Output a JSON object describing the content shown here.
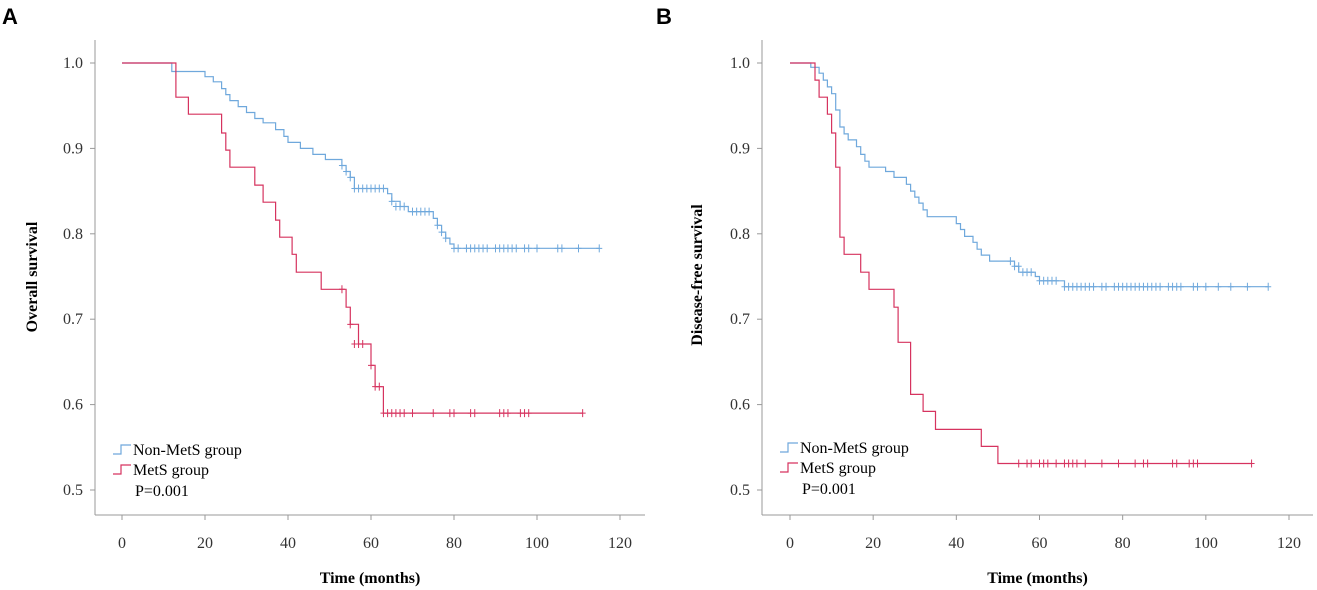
{
  "figure_labels": [
    "A",
    "B"
  ],
  "chart_data": [
    {
      "panel": "A",
      "type": "line",
      "subtype": "kaplan-meier-step",
      "title": "",
      "xlabel": "Time (months)",
      "ylabel": "Overall survival",
      "xlim": [
        0,
        120
      ],
      "ylim": [
        0.5,
        1.0
      ],
      "xticks": [
        0,
        20,
        40,
        60,
        80,
        100,
        120
      ],
      "yticks": [
        0.5,
        0.6,
        0.7,
        0.8,
        0.9,
        1.0
      ],
      "xtick_labels": [
        "0",
        "20",
        "40",
        "60",
        "80",
        "100",
        "120"
      ],
      "ytick_labels": [
        "0.5",
        "0.6",
        "0.7",
        "0.8",
        "0.9",
        "1.0"
      ],
      "legend_position": "bottom-left",
      "annotation": "P=0.001",
      "series": [
        {
          "name": "Non-MetS group",
          "color": "#6fa8dc",
          "steps": [
            [
              0,
              1.0
            ],
            [
              12,
              0.99
            ],
            [
              20,
              0.984
            ],
            [
              22,
              0.978
            ],
            [
              24,
              0.97
            ],
            [
              25,
              0.963
            ],
            [
              26,
              0.956
            ],
            [
              28,
              0.949
            ],
            [
              30,
              0.942
            ],
            [
              32,
              0.935
            ],
            [
              34,
              0.93
            ],
            [
              37,
              0.922
            ],
            [
              39,
              0.914
            ],
            [
              40,
              0.907
            ],
            [
              43,
              0.9
            ],
            [
              46,
              0.893
            ],
            [
              49,
              0.887
            ],
            [
              53,
              0.88
            ],
            [
              54,
              0.873
            ],
            [
              55,
              0.866
            ],
            [
              56,
              0.853
            ],
            [
              64,
              0.847
            ],
            [
              65,
              0.838
            ],
            [
              67,
              0.832
            ],
            [
              69,
              0.826
            ],
            [
              75,
              0.818
            ],
            [
              76,
              0.81
            ],
            [
              77,
              0.802
            ],
            [
              78,
              0.795
            ],
            [
              79,
              0.788
            ],
            [
              80,
              0.783
            ],
            [
              115,
              0.783
            ]
          ],
          "censored": [
            [
              53,
              0.88
            ],
            [
              54,
              0.873
            ],
            [
              55,
              0.866
            ],
            [
              56,
              0.853
            ],
            [
              57,
              0.853
            ],
            [
              58,
              0.853
            ],
            [
              59,
              0.853
            ],
            [
              60,
              0.853
            ],
            [
              61,
              0.853
            ],
            [
              62,
              0.853
            ],
            [
              63,
              0.853
            ],
            [
              65,
              0.838
            ],
            [
              66,
              0.832
            ],
            [
              67,
              0.832
            ],
            [
              68,
              0.832
            ],
            [
              70,
              0.826
            ],
            [
              71,
              0.826
            ],
            [
              72,
              0.826
            ],
            [
              73,
              0.826
            ],
            [
              74,
              0.826
            ],
            [
              76,
              0.81
            ],
            [
              77,
              0.802
            ],
            [
              78,
              0.795
            ],
            [
              80,
              0.783
            ],
            [
              81,
              0.783
            ],
            [
              83,
              0.783
            ],
            [
              84,
              0.783
            ],
            [
              85,
              0.783
            ],
            [
              86,
              0.783
            ],
            [
              87,
              0.783
            ],
            [
              88,
              0.783
            ],
            [
              90,
              0.783
            ],
            [
              91,
              0.783
            ],
            [
              92,
              0.783
            ],
            [
              93,
              0.783
            ],
            [
              94,
              0.783
            ],
            [
              95,
              0.783
            ],
            [
              97,
              0.783
            ],
            [
              98,
              0.783
            ],
            [
              100,
              0.783
            ],
            [
              105,
              0.783
            ],
            [
              106,
              0.783
            ],
            [
              110,
              0.783
            ],
            [
              115,
              0.783
            ]
          ]
        },
        {
          "name": "MetS group",
          "color": "#d6335f",
          "steps": [
            [
              0,
              1.0
            ],
            [
              13,
              0.96
            ],
            [
              16,
              0.94
            ],
            [
              24,
              0.918
            ],
            [
              25,
              0.898
            ],
            [
              26,
              0.878
            ],
            [
              32,
              0.857
            ],
            [
              34,
              0.837
            ],
            [
              37,
              0.816
            ],
            [
              38,
              0.796
            ],
            [
              41,
              0.776
            ],
            [
              42,
              0.755
            ],
            [
              48,
              0.735
            ],
            [
              54,
              0.714
            ],
            [
              55,
              0.694
            ],
            [
              57,
              0.671
            ],
            [
              60,
              0.646
            ],
            [
              61,
              0.621
            ],
            [
              63,
              0.59
            ],
            [
              111,
              0.59
            ]
          ],
          "censored": [
            [
              53,
              0.735
            ],
            [
              55,
              0.694
            ],
            [
              56,
              0.671
            ],
            [
              57,
              0.671
            ],
            [
              58,
              0.671
            ],
            [
              60,
              0.646
            ],
            [
              61,
              0.621
            ],
            [
              62,
              0.621
            ],
            [
              63,
              0.59
            ],
            [
              64,
              0.59
            ],
            [
              65,
              0.59
            ],
            [
              66,
              0.59
            ],
            [
              67,
              0.59
            ],
            [
              68,
              0.59
            ],
            [
              70,
              0.59
            ],
            [
              75,
              0.59
            ],
            [
              79,
              0.59
            ],
            [
              80,
              0.59
            ],
            [
              84,
              0.59
            ],
            [
              85,
              0.59
            ],
            [
              91,
              0.59
            ],
            [
              92,
              0.59
            ],
            [
              93,
              0.59
            ],
            [
              96,
              0.59
            ],
            [
              97,
              0.59
            ],
            [
              98,
              0.59
            ],
            [
              111,
              0.59
            ]
          ]
        }
      ]
    },
    {
      "panel": "B",
      "type": "line",
      "subtype": "kaplan-meier-step",
      "title": "",
      "xlabel": "Time (months)",
      "ylabel": "Disease-free survival",
      "xlim": [
        0,
        120
      ],
      "ylim": [
        0.5,
        1.0
      ],
      "xticks": [
        0,
        20,
        40,
        60,
        80,
        100,
        120
      ],
      "yticks": [
        0.5,
        0.6,
        0.7,
        0.8,
        0.9,
        1.0
      ],
      "xtick_labels": [
        "0",
        "20",
        "40",
        "60",
        "80",
        "100",
        "120"
      ],
      "ytick_labels": [
        "0.5",
        "0.6",
        "0.7",
        "0.8",
        "0.9",
        "1.0"
      ],
      "legend_position": "bottom-left",
      "annotation": "P=0.001",
      "series": [
        {
          "name": "Non-MetS group",
          "color": "#6fa8dc",
          "steps": [
            [
              0,
              1.0
            ],
            [
              5,
              0.995
            ],
            [
              7,
              0.988
            ],
            [
              8,
              0.98
            ],
            [
              9,
              0.972
            ],
            [
              10,
              0.964
            ],
            [
              11,
              0.945
            ],
            [
              12,
              0.925
            ],
            [
              13,
              0.917
            ],
            [
              14,
              0.91
            ],
            [
              16,
              0.902
            ],
            [
              17,
              0.893
            ],
            [
              18,
              0.885
            ],
            [
              19,
              0.878
            ],
            [
              23,
              0.873
            ],
            [
              25,
              0.866
            ],
            [
              28,
              0.858
            ],
            [
              29,
              0.85
            ],
            [
              30,
              0.843
            ],
            [
              31,
              0.836
            ],
            [
              32,
              0.828
            ],
            [
              33,
              0.82
            ],
            [
              40,
              0.812
            ],
            [
              41,
              0.805
            ],
            [
              42,
              0.797
            ],
            [
              44,
              0.79
            ],
            [
              45,
              0.782
            ],
            [
              46,
              0.775
            ],
            [
              48,
              0.768
            ],
            [
              54,
              0.762
            ],
            [
              55,
              0.755
            ],
            [
              59,
              0.75
            ],
            [
              60,
              0.745
            ],
            [
              66,
              0.738
            ],
            [
              115,
              0.738
            ]
          ],
          "censored": [
            [
              53,
              0.768
            ],
            [
              54,
              0.762
            ],
            [
              55,
              0.762
            ],
            [
              56,
              0.755
            ],
            [
              57,
              0.755
            ],
            [
              58,
              0.755
            ],
            [
              60,
              0.745
            ],
            [
              61,
              0.745
            ],
            [
              62,
              0.745
            ],
            [
              63,
              0.745
            ],
            [
              64,
              0.745
            ],
            [
              66,
              0.738
            ],
            [
              67,
              0.738
            ],
            [
              68,
              0.738
            ],
            [
              69,
              0.738
            ],
            [
              70,
              0.738
            ],
            [
              71,
              0.738
            ],
            [
              72,
              0.738
            ],
            [
              73,
              0.738
            ],
            [
              75,
              0.738
            ],
            [
              76,
              0.738
            ],
            [
              78,
              0.738
            ],
            [
              79,
              0.738
            ],
            [
              80,
              0.738
            ],
            [
              81,
              0.738
            ],
            [
              82,
              0.738
            ],
            [
              83,
              0.738
            ],
            [
              84,
              0.738
            ],
            [
              85,
              0.738
            ],
            [
              86,
              0.738
            ],
            [
              87,
              0.738
            ],
            [
              88,
              0.738
            ],
            [
              89,
              0.738
            ],
            [
              91,
              0.738
            ],
            [
              92,
              0.738
            ],
            [
              93,
              0.738
            ],
            [
              94,
              0.738
            ],
            [
              97,
              0.738
            ],
            [
              98,
              0.738
            ],
            [
              100,
              0.738
            ],
            [
              103,
              0.738
            ],
            [
              106,
              0.738
            ],
            [
              110,
              0.738
            ],
            [
              115,
              0.738
            ]
          ]
        },
        {
          "name": "MetS group",
          "color": "#d6335f",
          "steps": [
            [
              0,
              1.0
            ],
            [
              6,
              0.98
            ],
            [
              7,
              0.96
            ],
            [
              9,
              0.94
            ],
            [
              10,
              0.918
            ],
            [
              11,
              0.878
            ],
            [
              12,
              0.796
            ],
            [
              13,
              0.776
            ],
            [
              17,
              0.755
            ],
            [
              19,
              0.735
            ],
            [
              25,
              0.714
            ],
            [
              26,
              0.673
            ],
            [
              29,
              0.612
            ],
            [
              32,
              0.592
            ],
            [
              35,
              0.571
            ],
            [
              46,
              0.551
            ],
            [
              50,
              0.531
            ],
            [
              111,
              0.531
            ]
          ],
          "censored": [
            [
              55,
              0.531
            ],
            [
              57,
              0.531
            ],
            [
              58,
              0.531
            ],
            [
              60,
              0.531
            ],
            [
              61,
              0.531
            ],
            [
              62,
              0.531
            ],
            [
              64,
              0.531
            ],
            [
              66,
              0.531
            ],
            [
              67,
              0.531
            ],
            [
              68,
              0.531
            ],
            [
              69,
              0.531
            ],
            [
              71,
              0.531
            ],
            [
              75,
              0.531
            ],
            [
              79,
              0.531
            ],
            [
              83,
              0.531
            ],
            [
              85,
              0.531
            ],
            [
              86,
              0.531
            ],
            [
              92,
              0.531
            ],
            [
              93,
              0.531
            ],
            [
              96,
              0.531
            ],
            [
              97,
              0.531
            ],
            [
              98,
              0.531
            ],
            [
              111,
              0.531
            ]
          ]
        }
      ]
    }
  ]
}
